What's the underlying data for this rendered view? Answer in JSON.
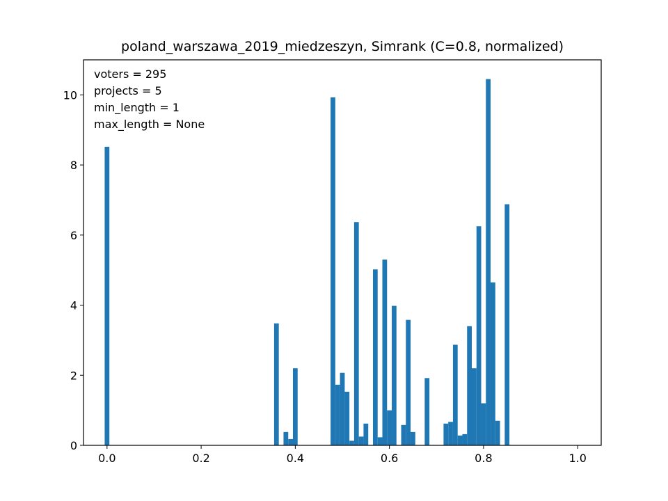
{
  "chart_data": {
    "type": "bar",
    "title": "poland_warszawa_2019_miedzeszyn, Simrank (C=0.8, normalized)",
    "xlabel": "",
    "ylabel": "",
    "xlim": [
      -0.05,
      1.05
    ],
    "ylim": [
      0,
      11
    ],
    "xticks": [
      0.0,
      0.2,
      0.4,
      0.6,
      0.8,
      1.0
    ],
    "xtick_labels": [
      "0.0",
      "0.2",
      "0.4",
      "0.6",
      "0.8",
      "1.0"
    ],
    "yticks": [
      0,
      2,
      4,
      6,
      8,
      10
    ],
    "ytick_labels": [
      "0",
      "2",
      "4",
      "6",
      "8",
      "10"
    ],
    "grid": false,
    "bar_color": "#1f77b4",
    "bin_width": 0.01,
    "annotations": [
      "voters = 295",
      "projects = 5",
      "min_length = 1",
      "max_length = None"
    ],
    "bins": [
      {
        "x": 0.0,
        "value": 8.52
      },
      {
        "x": 0.36,
        "value": 3.48
      },
      {
        "x": 0.38,
        "value": 0.38
      },
      {
        "x": 0.39,
        "value": 0.18
      },
      {
        "x": 0.4,
        "value": 2.2
      },
      {
        "x": 0.48,
        "value": 9.93
      },
      {
        "x": 0.49,
        "value": 1.73
      },
      {
        "x": 0.5,
        "value": 2.07
      },
      {
        "x": 0.51,
        "value": 1.53
      },
      {
        "x": 0.52,
        "value": 0.13
      },
      {
        "x": 0.53,
        "value": 6.37
      },
      {
        "x": 0.54,
        "value": 0.25
      },
      {
        "x": 0.55,
        "value": 0.62
      },
      {
        "x": 0.57,
        "value": 5.02
      },
      {
        "x": 0.58,
        "value": 0.23
      },
      {
        "x": 0.59,
        "value": 5.3
      },
      {
        "x": 0.6,
        "value": 1.0
      },
      {
        "x": 0.61,
        "value": 3.98
      },
      {
        "x": 0.63,
        "value": 0.58
      },
      {
        "x": 0.64,
        "value": 3.58
      },
      {
        "x": 0.65,
        "value": 0.38
      },
      {
        "x": 0.68,
        "value": 1.92
      },
      {
        "x": 0.72,
        "value": 0.62
      },
      {
        "x": 0.73,
        "value": 0.67
      },
      {
        "x": 0.74,
        "value": 2.87
      },
      {
        "x": 0.75,
        "value": 0.28
      },
      {
        "x": 0.76,
        "value": 0.32
      },
      {
        "x": 0.77,
        "value": 3.4
      },
      {
        "x": 0.78,
        "value": 2.2
      },
      {
        "x": 0.79,
        "value": 6.25
      },
      {
        "x": 0.8,
        "value": 1.2
      },
      {
        "x": 0.81,
        "value": 10.45
      },
      {
        "x": 0.82,
        "value": 4.65
      },
      {
        "x": 0.83,
        "value": 0.7
      },
      {
        "x": 0.85,
        "value": 6.88
      }
    ]
  }
}
